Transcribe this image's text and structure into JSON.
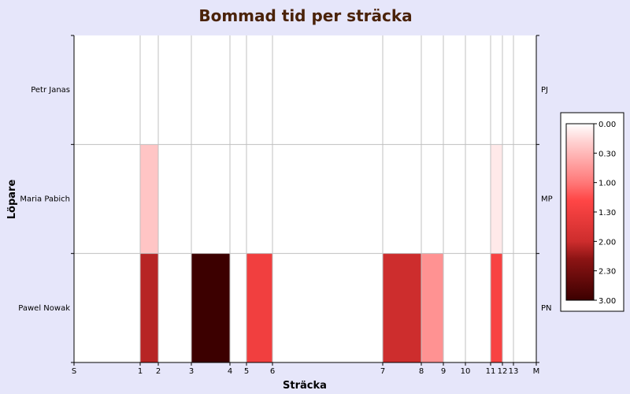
{
  "chart_data": {
    "type": "heatmap",
    "title": "Bommad tid per sträcka",
    "xlabel": "Sträcka",
    "ylabel": "Löpare",
    "x_ticks": [
      {
        "label": "S",
        "pos": 0
      },
      {
        "label": "1",
        "pos": 1
      },
      {
        "label": "2",
        "pos": 2
      },
      {
        "label": "3",
        "pos": 3
      },
      {
        "label": "4",
        "pos": 4
      },
      {
        "label": "5",
        "pos": 5
      },
      {
        "label": "6",
        "pos": 6
      },
      {
        "label": "7",
        "pos": 7
      },
      {
        "label": "8",
        "pos": 8
      },
      {
        "label": "9",
        "pos": 9
      },
      {
        "label": "10",
        "pos": 10
      },
      {
        "label": "11",
        "pos": 11
      },
      {
        "label": "12",
        "pos": 12
      },
      {
        "label": "13",
        "pos": 13
      },
      {
        "label": "M",
        "pos": 14
      }
    ],
    "x_boundaries": [
      0,
      1,
      2,
      3,
      4,
      5,
      6,
      7,
      8,
      9,
      10,
      11,
      12,
      13,
      14
    ],
    "runners": [
      {
        "name": "Petr Janas",
        "short": "PJ",
        "values": [
          0,
          0,
          0,
          0,
          0,
          0,
          0,
          0,
          0,
          0,
          0,
          0,
          0,
          0
        ]
      },
      {
        "name": "Maria Pabich",
        "short": "MP",
        "values": [
          0,
          0.4,
          0,
          0,
          0,
          0,
          0,
          0,
          0,
          0,
          0,
          0.15,
          0,
          0
        ]
      },
      {
        "name": "Pawel Nowak",
        "short": "PN",
        "values": [
          0,
          2.1,
          0,
          3.0,
          0,
          1.5,
          0,
          2.0,
          0.8,
          0,
          0,
          1.4,
          0,
          0
        ]
      }
    ],
    "legend": {
      "placement": "right",
      "labels": [
        "0.00",
        "0.30",
        "1.00",
        "1.30",
        "2.00",
        "2.30",
        "3.00"
      ],
      "range": [
        0,
        3
      ]
    }
  }
}
